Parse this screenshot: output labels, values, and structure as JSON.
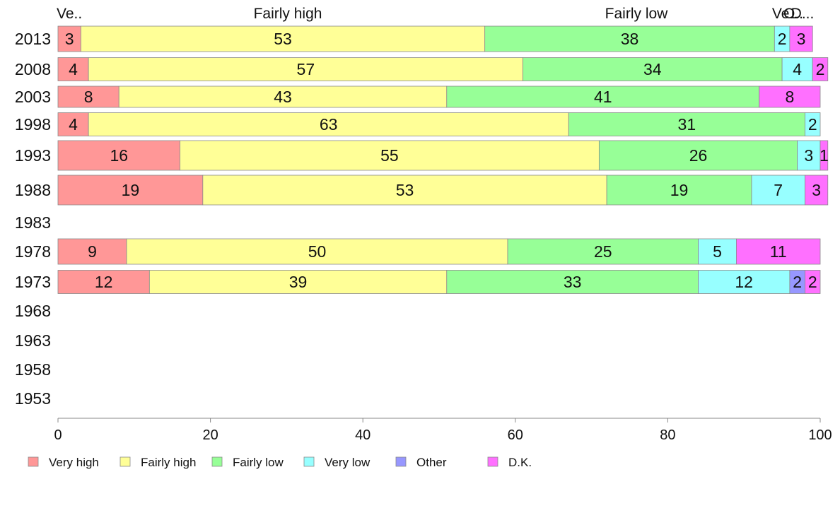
{
  "chart_data": {
    "type": "bar",
    "orientation": "horizontal",
    "stacked": true,
    "categories": [
      "2013",
      "2008",
      "2003",
      "1998",
      "1993",
      "1988",
      "1983",
      "1978",
      "1973",
      "1968",
      "1963",
      "1958",
      "1953"
    ],
    "series": [
      {
        "name": "Very high",
        "color": "#ff9797",
        "values": [
          3,
          4,
          8,
          4,
          16,
          19,
          null,
          9,
          12,
          null,
          null,
          null,
          null
        ]
      },
      {
        "name": "Fairly high",
        "color": "#ffff97",
        "values": [
          53,
          57,
          43,
          63,
          55,
          53,
          null,
          50,
          39,
          null,
          null,
          null,
          null
        ]
      },
      {
        "name": "Fairly low",
        "color": "#97ff97",
        "values": [
          38,
          34,
          41,
          31,
          26,
          19,
          null,
          25,
          33,
          null,
          null,
          null,
          null
        ]
      },
      {
        "name": "Very low",
        "color": "#97ffff",
        "values": [
          2,
          4,
          0,
          2,
          3,
          7,
          null,
          5,
          12,
          null,
          null,
          null,
          null
        ]
      },
      {
        "name": "Other",
        "color": "#9797ff",
        "values": [
          0,
          0,
          0,
          0,
          0,
          0,
          null,
          0,
          2,
          null,
          null,
          null,
          null
        ]
      },
      {
        "name": "D.K.",
        "color": "#ff70ff",
        "values": [
          3,
          2,
          8,
          0,
          1,
          3,
          null,
          11,
          2,
          null,
          null,
          null,
          null
        ]
      }
    ],
    "top_labels": [
      "Ve..",
      "Fairly high",
      "Fairly low",
      "Ve..",
      "O..",
      "D..."
    ],
    "xlim": [
      0,
      100
    ],
    "xticks": [
      "0",
      "20",
      "40",
      "60",
      "80",
      "100"
    ],
    "grid": false,
    "legend": "bottom",
    "title": "",
    "xlabel": "",
    "ylabel": ""
  }
}
